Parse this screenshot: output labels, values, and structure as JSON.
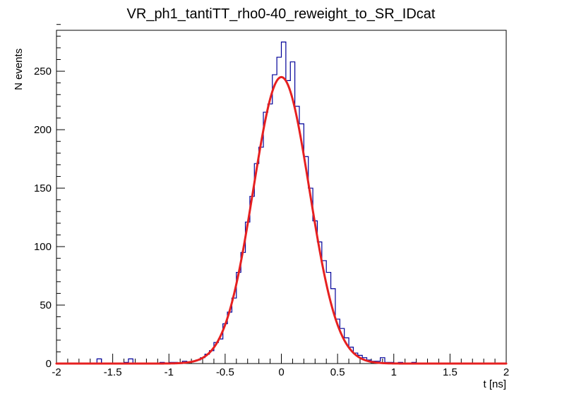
{
  "title": "VR_ph1_tantiTT_rho0-40_reweight_to_SR_IDcat",
  "chart_data": {
    "type": "bar",
    "subtype": "histogram-with-gaussian-fit",
    "title": "VR_ph1_tantiTT_rho0-40_reweight_to_SR_IDcat",
    "xlabel": "t [ns]",
    "ylabel": "N events",
    "xlim": [
      -2,
      2
    ],
    "ylim": [
      0,
      285
    ],
    "x_ticks": [
      -2,
      -1.5,
      -1,
      -0.5,
      0,
      0.5,
      1,
      1.5,
      2
    ],
    "x_tick_labels": [
      "-2",
      "-1.5",
      "-1",
      "-0.5",
      "0",
      "0.5",
      "1",
      "1.5",
      "2"
    ],
    "y_ticks": [
      0,
      50,
      100,
      150,
      200,
      250
    ],
    "y_tick_labels": [
      "0",
      "50",
      "100",
      "150",
      "200",
      "250"
    ],
    "minor_x_step": 0.1,
    "minor_y_step": 10,
    "grid": false,
    "legend": "none",
    "bins": {
      "start": -2,
      "width": 0.04,
      "count": 100
    },
    "counts": [
      0,
      0,
      0,
      0,
      0,
      0,
      0,
      0,
      0,
      4,
      0,
      0,
      0,
      0,
      0,
      1,
      4,
      0,
      0,
      0,
      0,
      0,
      0,
      1,
      0,
      1,
      1,
      0,
      2,
      1,
      2,
      3,
      5,
      8,
      11,
      18,
      21,
      34,
      44,
      56,
      78,
      95,
      121,
      143,
      171,
      185,
      215,
      222,
      247,
      262,
      275,
      242,
      258,
      220,
      205,
      177,
      150,
      122,
      104,
      88,
      78,
      64,
      38,
      30,
      22,
      14,
      9,
      7,
      5,
      3,
      2,
      2,
      5,
      1,
      1,
      0,
      1,
      0,
      0,
      1,
      0,
      0,
      0,
      0,
      0,
      0,
      0,
      0,
      0,
      0,
      0,
      0,
      0,
      0,
      0,
      0,
      0,
      0,
      0,
      0
    ],
    "histogram_color": "#000099",
    "fit": {
      "type": "gaussian",
      "amplitude": 245,
      "mean": 0.0,
      "sigma": 0.25,
      "color": "#e62020",
      "line_width": 3
    },
    "frame_color": "#000000",
    "background_color": "#ffffff"
  }
}
